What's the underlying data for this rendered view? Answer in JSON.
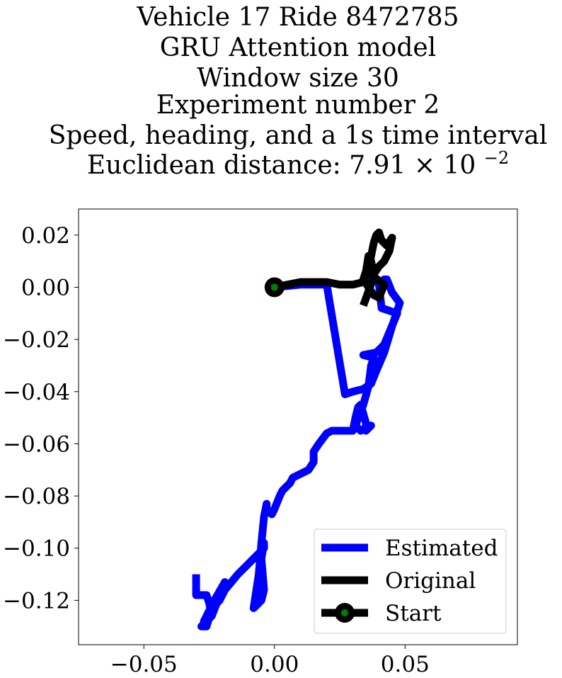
{
  "chart_data": {
    "type": "line",
    "title_lines": [
      "Vehicle 17 Ride 8472785",
      "GRU Attention model",
      "Window size 30",
      "Experiment number 2",
      "Speed, heading, and a 1s time interval"
    ],
    "title_metric": {
      "prefix": "Euclidean distance: 7.91",
      "times": "×",
      "base": "10",
      "exponent": "−2"
    },
    "xlim": [
      -0.075,
      0.093
    ],
    "ylim": [
      -0.137,
      0.03
    ],
    "x_ticks": [
      -0.05,
      0.0,
      0.05
    ],
    "x_tick_labels": [
      "−0.05",
      "0.00",
      "0.05"
    ],
    "y_ticks": [
      0.02,
      0.0,
      -0.02,
      -0.04,
      -0.06,
      -0.08,
      -0.1,
      -0.12
    ],
    "y_tick_labels": [
      "0.02",
      "0.00",
      "−0.02",
      "−0.04",
      "−0.06",
      "−0.08",
      "−0.10",
      "−0.12"
    ],
    "legend_position": "lower-right",
    "grid": false,
    "series": [
      {
        "name": "Estimated",
        "color": "#0000ff",
        "x": [
          -0.03,
          -0.03,
          -0.026,
          -0.025,
          -0.024,
          -0.027,
          -0.028,
          -0.026,
          -0.023,
          -0.019,
          -0.024,
          -0.027,
          -0.025,
          -0.023,
          -0.021,
          -0.019,
          -0.014,
          -0.009,
          -0.004,
          -0.004,
          -0.005,
          -0.004,
          -0.005,
          -0.007,
          -0.008,
          -0.006,
          -0.005,
          -0.004,
          -0.003,
          -0.003,
          -0.001,
          0.0,
          0.002,
          0.003,
          0.004,
          0.005,
          0.006,
          0.007,
          0.013,
          0.015,
          0.015,
          0.017,
          0.02,
          0.022,
          0.03,
          0.031,
          0.032,
          0.033,
          0.035,
          0.035,
          0.037,
          0.033,
          0.031,
          0.034,
          0.036,
          0.037,
          0.038,
          0.034,
          0.039,
          0.042,
          0.047,
          0.041,
          0.04,
          0.042,
          0.043,
          0.045,
          0.048,
          0.045,
          0.042,
          0.039,
          0.037,
          0.034,
          0.03,
          0.027,
          0.02,
          0.01,
          0.0
        ],
        "y": [
          -0.11,
          -0.118,
          -0.118,
          -0.121,
          -0.126,
          -0.129,
          -0.13,
          -0.13,
          -0.12,
          -0.113,
          -0.126,
          -0.128,
          -0.124,
          -0.122,
          -0.12,
          -0.116,
          -0.11,
          -0.105,
          -0.1,
          -0.098,
          -0.104,
          -0.116,
          -0.12,
          -0.122,
          -0.123,
          -0.11,
          -0.098,
          -0.088,
          -0.083,
          -0.085,
          -0.087,
          -0.085,
          -0.08,
          -0.078,
          -0.077,
          -0.076,
          -0.075,
          -0.073,
          -0.07,
          -0.067,
          -0.063,
          -0.06,
          -0.056,
          -0.055,
          -0.055,
          -0.05,
          -0.046,
          -0.045,
          -0.052,
          -0.055,
          -0.053,
          -0.055,
          -0.053,
          -0.045,
          -0.038,
          -0.03,
          -0.027,
          -0.026,
          -0.025,
          -0.022,
          -0.01,
          -0.008,
          0.001,
          0.003,
          0.003,
          -0.002,
          -0.006,
          -0.015,
          -0.025,
          -0.032,
          -0.037,
          -0.039,
          -0.04,
          -0.041,
          0.001,
          0.001,
          0.0
        ]
      },
      {
        "name": "Original",
        "color": "#000000",
        "x": [
          0.0,
          0.005,
          0.01,
          0.015,
          0.02,
          0.025,
          0.03,
          0.034,
          0.036,
          0.037,
          0.038,
          0.039,
          0.04,
          0.041,
          0.043,
          0.045,
          0.044,
          0.042,
          0.04,
          0.038,
          0.037,
          0.036,
          0.035,
          0.034,
          0.036,
          0.038,
          0.04,
          0.042,
          0.038,
          0.034
        ],
        "y": [
          0.0,
          0.001,
          0.002,
          0.002,
          0.002,
          0.001,
          0.001,
          0.002,
          0.007,
          0.012,
          0.017,
          0.02,
          0.021,
          0.018,
          0.016,
          0.019,
          0.014,
          0.01,
          0.008,
          0.005,
          0.01,
          0.012,
          0.006,
          0.003,
          0.0,
          -0.003,
          -0.004,
          0.001,
          0.004,
          -0.007
        ]
      }
    ],
    "start": {
      "name": "Start",
      "x": 0.0,
      "y": 0.0,
      "marker_color": "#008000",
      "marker_edge": "#000000"
    }
  }
}
